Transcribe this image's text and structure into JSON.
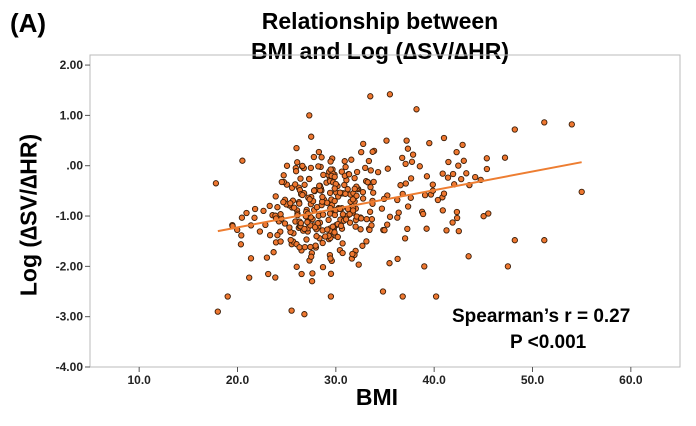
{
  "panel_label": "(A)",
  "colors": {
    "point_fill": "#ee7730",
    "point_stroke": "#3a1d08",
    "fit_line": "#ed7d31",
    "axis": "#bbbbbb"
  },
  "chart_data": {
    "type": "scatter",
    "title_line1": "Relationship between",
    "title_line2": "BMI and Log (∆SV/∆HR)",
    "xlabel": "BMI",
    "ylabel": "Log (∆SV/∆HR)",
    "xlim": [
      5,
      65
    ],
    "ylim": [
      -4,
      2.2
    ],
    "x_ticks": [
      10,
      20,
      30,
      40,
      50,
      60
    ],
    "x_tick_labels": [
      "10.0",
      "20.0",
      "30.0",
      "40.0",
      "50.0",
      "60.0"
    ],
    "y_ticks": [
      2,
      1,
      0,
      -1,
      -2,
      -3,
      -4
    ],
    "y_tick_labels": [
      "2.00",
      "1.00",
      ".00",
      "-1.00",
      "-2.00",
      "-3.00",
      "-4.00"
    ],
    "fit_line": {
      "x": [
        18,
        55
      ],
      "y": [
        -1.3,
        0.07
      ]
    },
    "annotation_line1": "Spearman’s r = 0.27",
    "annotation_line2": "P <0.001",
    "n_points": 380,
    "point_cloud": {
      "x_range": [
        17.5,
        55
      ],
      "y_range": [
        -2.95,
        1.42
      ],
      "x_mode": 29,
      "y_center": -0.7
    },
    "outlier_points": [
      {
        "x": 35.5,
        "y": 1.42
      },
      {
        "x": 33.5,
        "y": 1.38
      },
      {
        "x": 38.2,
        "y": 1.12
      },
      {
        "x": 27.3,
        "y": 1.0
      },
      {
        "x": 54,
        "y": 0.82
      },
      {
        "x": 51.2,
        "y": 0.86
      },
      {
        "x": 48.2,
        "y": 0.72
      },
      {
        "x": 47.2,
        "y": 0.16
      },
      {
        "x": 55,
        "y": -0.52
      },
      {
        "x": 51.2,
        "y": -1.48
      },
      {
        "x": 48.2,
        "y": -1.48
      },
      {
        "x": 47.5,
        "y": -2.0
      },
      {
        "x": 43.5,
        "y": -1.8
      },
      {
        "x": 39.0,
        "y": -2.0
      },
      {
        "x": 36.8,
        "y": -2.6
      },
      {
        "x": 18.0,
        "y": -2.9
      },
      {
        "x": 19.0,
        "y": -2.6
      },
      {
        "x": 25.5,
        "y": -2.88
      },
      {
        "x": 26.8,
        "y": -2.95
      },
      {
        "x": 29.5,
        "y": -2.6
      },
      {
        "x": 34.8,
        "y": -2.5
      },
      {
        "x": 17.8,
        "y": -0.35
      },
      {
        "x": 20.5,
        "y": 0.1
      },
      {
        "x": 26.0,
        "y": 0.35
      },
      {
        "x": 39.5,
        "y": 0.45
      },
      {
        "x": 41.0,
        "y": 0.55
      },
      {
        "x": 45.5,
        "y": -0.95
      },
      {
        "x": 42.5,
        "y": -1.3
      },
      {
        "x": 19.5,
        "y": -1.2
      },
      {
        "x": 40.2,
        "y": -2.6
      }
    ]
  }
}
